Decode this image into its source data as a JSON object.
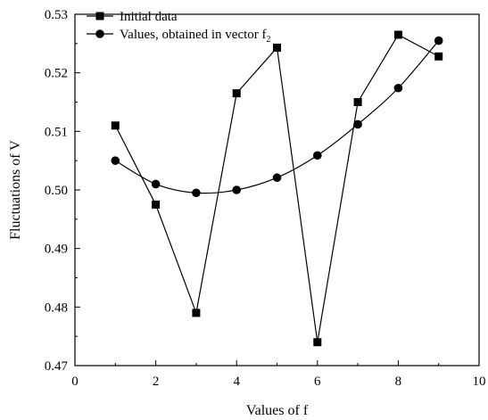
{
  "chart_data": {
    "type": "line",
    "xlabel": "Values of f",
    "ylabel": "Fluctuations of V",
    "xlim": [
      0,
      10
    ],
    "ylim": [
      0.47,
      0.53
    ],
    "xticks": [
      0,
      2,
      4,
      6,
      8,
      10
    ],
    "xtick_labels": [
      "0",
      "2",
      "4",
      "6",
      "8",
      "10"
    ],
    "yticks": [
      0.47,
      0.48,
      0.49,
      0.5,
      0.51,
      0.52,
      0.53
    ],
    "ytick_labels": [
      "0.47",
      "0.48",
      "0.49",
      "0.50",
      "0.51",
      "0.52",
      "0.53"
    ],
    "grid": false,
    "legend_position": "top-left",
    "series": [
      {
        "name": "Initial data",
        "marker": "square",
        "smooth": false,
        "x": [
          1,
          2,
          3,
          4,
          5,
          6,
          7,
          8,
          9
        ],
        "y": [
          0.511,
          0.4975,
          0.479,
          0.5165,
          0.5243,
          0.474,
          0.515,
          0.5265,
          0.5228
        ]
      },
      {
        "name_prefix": "Values, obtained in vector f",
        "name_subscript": "2",
        "marker": "circle",
        "smooth": true,
        "x": [
          1,
          2,
          3,
          4,
          5,
          6,
          7,
          8,
          9
        ],
        "y": [
          0.505,
          0.501,
          0.4995,
          0.5,
          0.5021,
          0.5059,
          0.5112,
          0.5174,
          0.5255
        ]
      }
    ]
  }
}
